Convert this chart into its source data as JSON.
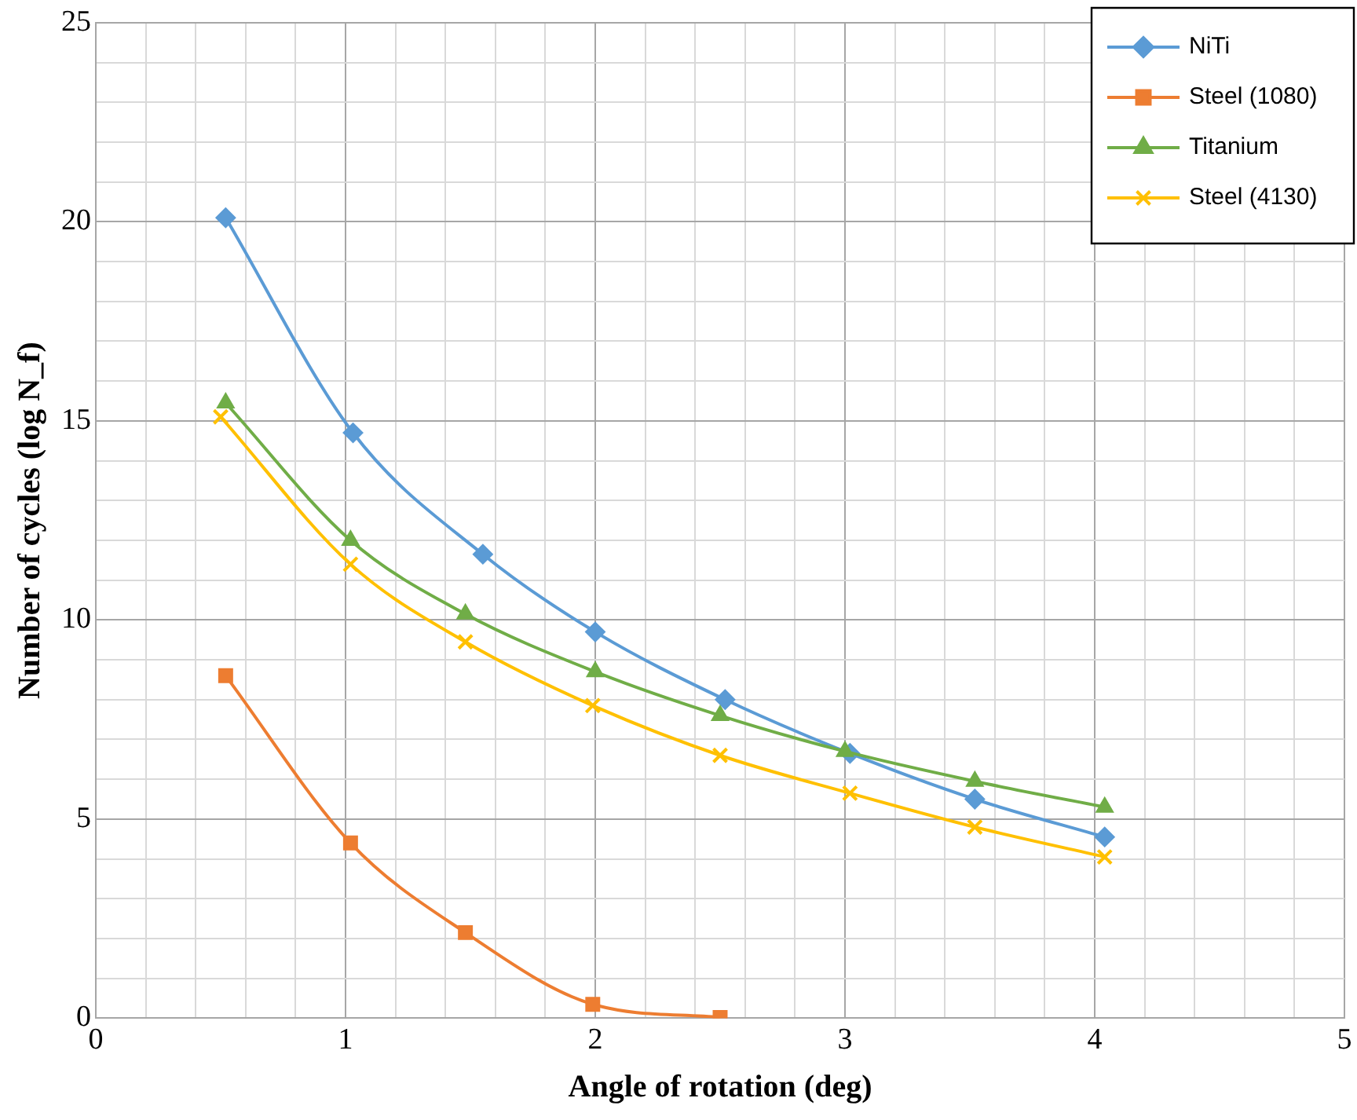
{
  "chart_data": {
    "type": "line",
    "xlabel": "Angle of rotation (deg)",
    "ylabel": "Number of cycles (log N_f)",
    "xlim": [
      0,
      5
    ],
    "xticks": [
      0,
      {
        "value": 0.2,
        "label": null
      },
      {
        "value": 0.4,
        "label": null
      },
      {
        "value": 0.6,
        "label": null
      },
      {
        "value": 0.8,
        "label": null
      },
      1,
      {
        "value": 1.2,
        "label": null
      },
      {
        "value": 1.4,
        "label": null
      },
      {
        "value": 1.6,
        "label": null
      },
      {
        "value": 1.8,
        "label": null
      },
      2,
      {
        "value": 2.2,
        "label": null
      },
      {
        "value": 2.4,
        "label": null
      },
      {
        "value": 2.6,
        "label": null
      },
      {
        "value": 2.8,
        "label": null
      },
      3,
      {
        "value": 3.2,
        "label": null
      },
      {
        "value": 3.4,
        "label": null
      },
      {
        "value": 3.6,
        "label": null
      },
      {
        "value": 3.8,
        "label": null
      },
      4,
      {
        "value": 4.2,
        "label": null
      },
      {
        "value": 4.4,
        "label": null
      },
      {
        "value": 4.6,
        "label": null
      },
      {
        "value": 4.8,
        "label": null
      },
      5
    ],
    "ylim": [
      0,
      25
    ],
    "yticks": [
      0,
      {
        "value": 1,
        "label": null
      },
      {
        "value": 2,
        "label": null
      },
      {
        "value": 3,
        "label": null
      },
      {
        "value": 4,
        "label": null
      },
      5,
      {
        "value": 6,
        "label": null
      },
      {
        "value": 7,
        "label": null
      },
      {
        "value": 8,
        "label": null
      },
      {
        "value": 9,
        "label": null
      },
      10,
      {
        "value": 11,
        "label": null
      },
      {
        "value": 12,
        "label": null
      },
      {
        "value": 13,
        "label": null
      },
      {
        "value": 14,
        "label": null
      },
      15,
      {
        "value": 16,
        "label": null
      },
      {
        "value": 17,
        "label": null
      },
      {
        "value": 18,
        "label": null
      },
      {
        "value": 19,
        "label": null
      },
      20,
      {
        "value": 21,
        "label": null
      },
      {
        "value": 22,
        "label": null
      },
      {
        "value": 23,
        "label": null
      },
      {
        "value": 24,
        "label": null
      },
      25
    ],
    "grid": true,
    "legend": "top right",
    "series": [
      {
        "name": "NiTi",
        "color": "#5b9bd5",
        "marker": "diamond",
        "x": [
          0.52,
          1.03,
          1.55,
          2.0,
          2.52,
          3.02,
          3.52,
          4.04
        ],
        "values": [
          20.1,
          14.7,
          11.65,
          9.7,
          8.0,
          6.65,
          5.5,
          4.55
        ]
      },
      {
        "name": "Steel (1080)",
        "color": "#ed7d31",
        "marker": "square",
        "x": [
          0.52,
          1.02,
          1.48,
          1.99,
          2.5
        ],
        "values": [
          8.6,
          4.4,
          2.15,
          0.35,
          0.02
        ]
      },
      {
        "name": "Titanium",
        "color": "#70ad47",
        "marker": "triangle",
        "x": [
          0.52,
          1.02,
          1.48,
          2.0,
          2.5,
          3.0,
          3.52,
          4.04
        ],
        "values": [
          15.45,
          12.0,
          10.15,
          8.7,
          7.6,
          6.7,
          5.95,
          5.3
        ]
      },
      {
        "name": "Steel (4130)",
        "color": "#ffc000",
        "marker": "cross",
        "x": [
          0.5,
          1.02,
          1.48,
          1.99,
          2.5,
          3.02,
          3.52,
          4.04
        ],
        "values": [
          15.1,
          11.4,
          9.45,
          7.85,
          6.6,
          5.65,
          4.8,
          4.05
        ]
      }
    ]
  }
}
